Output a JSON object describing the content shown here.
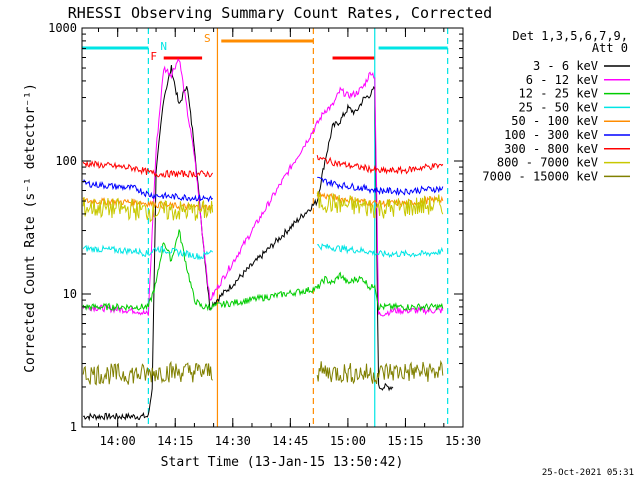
{
  "chart_data": {
    "type": "line",
    "title": "RHESSI Observing Summary Count Rates, Corrected",
    "xlabel": "Start Time (13-Jan-15 13:50:42)",
    "ylabel": "Corrected Count Rate (s⁻¹ detector⁻¹)",
    "xlim": [
      "13:50:42",
      "15:30:00"
    ],
    "ylim": [
      1,
      1000
    ],
    "yscale": "log",
    "x_ticks": [
      "14:00",
      "14:15",
      "14:30",
      "14:45",
      "15:00",
      "15:15",
      "15:30"
    ],
    "y_ticks": [
      "1",
      "10",
      "100",
      "1000"
    ],
    "legend_header": [
      "Det 1,3,5,6,7,9,",
      "Att 0"
    ],
    "legend_position": "right",
    "footer_date": "25-Oct-2021 05:31",
    "flags": [
      {
        "label": "N",
        "color": "#00e5e5",
        "start": "14:12",
        "end": "14:12"
      },
      {
        "label": "F",
        "color": "#ff0000",
        "start": "14:12",
        "end": "14:22"
      },
      {
        "label": "S",
        "color": "#ff8c00",
        "start": "14:27",
        "end": "14:51"
      }
    ],
    "night_bars": [
      {
        "color": "#00e5e5",
        "start": "13:50:42",
        "end": "14:08"
      },
      {
        "color": "#00e5e5",
        "start": "15:08",
        "end": "15:26"
      }
    ],
    "flare_bars": [
      {
        "color": "#ff0000",
        "start": "14:12",
        "end": "14:22"
      },
      {
        "color": "#ff0000",
        "start": "14:56",
        "end": "15:07"
      }
    ],
    "saa_bar": {
      "color": "#ff8c00",
      "start": "14:27",
      "end": "14:51"
    },
    "vlines": [
      {
        "time": "14:08",
        "color": "#00e5e5",
        "style": "dashed"
      },
      {
        "time": "14:26",
        "color": "#ff8c00",
        "style": "solid"
      },
      {
        "time": "14:51",
        "color": "#ff8c00",
        "style": "dashed"
      },
      {
        "time": "15:07",
        "color": "#00e5e5",
        "style": "solid"
      },
      {
        "time": "15:26",
        "color": "#00e5e5",
        "style": "dashed"
      }
    ],
    "series": [
      {
        "name": "3 - 6 keV",
        "color": "#000000",
        "x": [
          "13:51",
          "14:08",
          "14:09",
          "14:10",
          "14:12",
          "14:14",
          "14:16",
          "14:18",
          "14:20",
          "14:22",
          "14:24",
          "14:52",
          "14:54",
          "14:56",
          "14:58",
          "15:00",
          "15:02",
          "15:04",
          "15:06",
          "15:07",
          "15:08",
          "15:10",
          "15:12"
        ],
        "y": [
          1.2,
          1.2,
          2,
          80,
          300,
          500,
          260,
          380,
          130,
          30,
          8,
          50,
          100,
          180,
          200,
          250,
          230,
          290,
          320,
          350,
          2,
          2,
          2
        ]
      },
      {
        "name": "6 - 12 keV",
        "color": "#ff00ff",
        "x": [
          "13:51",
          "14:05",
          "14:08",
          "14:10",
          "14:12",
          "14:14",
          "14:16",
          "14:18",
          "14:20",
          "14:22",
          "14:24",
          "14:52",
          "14:54",
          "14:56",
          "14:58",
          "15:00",
          "15:02",
          "15:04",
          "15:06",
          "15:07",
          "15:08",
          "15:12",
          "15:20",
          "15:25"
        ],
        "y": [
          8,
          7.5,
          7,
          120,
          500,
          450,
          600,
          250,
          110,
          30,
          9,
          190,
          240,
          260,
          340,
          310,
          320,
          360,
          470,
          430,
          7,
          7.5,
          7.5,
          7.5
        ]
      },
      {
        "name": "12 - 25 keV",
        "color": "#00cc00",
        "x": [
          "13:51",
          "14:05",
          "14:08",
          "14:10",
          "14:12",
          "14:14",
          "14:16",
          "14:18",
          "14:20",
          "14:22",
          "14:24",
          "14:52",
          "14:54",
          "14:56",
          "14:58",
          "15:00",
          "15:02",
          "15:04",
          "15:06",
          "15:07",
          "15:08",
          "15:12",
          "15:20",
          "15:25"
        ],
        "y": [
          8,
          8,
          8,
          12,
          25,
          18,
          30,
          16,
          9,
          8,
          8,
          11,
          13,
          12,
          14,
          12,
          13,
          13,
          11,
          12,
          8,
          8,
          8,
          8
        ]
      },
      {
        "name": "25 - 50 keV",
        "color": "#00e5e5",
        "x": [
          "13:51",
          "14:05",
          "14:08",
          "14:10",
          "14:14",
          "14:18",
          "14:22",
          "14:25",
          "14:52",
          "14:58",
          "15:05",
          "15:08",
          "15:15",
          "15:20",
          "15:25"
        ],
        "y": [
          22,
          21,
          20,
          22,
          21,
          20,
          19,
          22,
          23,
          22,
          21,
          20,
          20,
          20,
          21
        ]
      },
      {
        "name": "50 - 100 keV",
        "color": "#ff8c00",
        "x": [
          "13:51",
          "14:05",
          "14:08",
          "14:10",
          "14:14",
          "14:20",
          "14:25",
          "14:52",
          "14:58",
          "15:05",
          "15:08",
          "15:15",
          "15:20",
          "15:25"
        ],
        "y": [
          50,
          49,
          48,
          47,
          46,
          45,
          45,
          56,
          52,
          49,
          48,
          48,
          50,
          52
        ]
      },
      {
        "name": "100 - 300 keV",
        "color": "#0000ff",
        "x": [
          "13:51",
          "14:05",
          "14:08",
          "14:10",
          "14:14",
          "14:20",
          "14:25",
          "14:52",
          "14:58",
          "15:05",
          "15:08",
          "15:15",
          "15:20",
          "15:25"
        ],
        "y": [
          68,
          62,
          56,
          55,
          54,
          53,
          52,
          73,
          66,
          62,
          60,
          59,
          61,
          62
        ]
      },
      {
        "name": "300 - 800 keV",
        "color": "#ff0000",
        "x": [
          "13:51",
          "14:05",
          "14:08",
          "14:10",
          "14:14",
          "14:20",
          "14:25",
          "14:52",
          "14:58",
          "15:05",
          "15:08",
          "15:15",
          "15:20",
          "15:25"
        ],
        "y": [
          96,
          88,
          82,
          80,
          80,
          80,
          80,
          105,
          95,
          88,
          84,
          85,
          90,
          93
        ]
      },
      {
        "name": "800 - 7000 keV",
        "color": "#c8c800",
        "x": [
          "13:51",
          "14:05",
          "14:08",
          "14:10",
          "14:14",
          "14:20",
          "14:25",
          "14:52",
          "14:58",
          "15:05",
          "15:08",
          "15:15",
          "15:20",
          "15:25"
        ],
        "y": [
          45,
          43,
          42,
          42,
          42,
          42,
          43,
          50,
          47,
          45,
          44,
          45,
          46,
          47
        ]
      },
      {
        "name": "7000 - 15000 keV",
        "color": "#808000",
        "x": [
          "13:51",
          "14:08",
          "14:10",
          "14:25",
          "14:52",
          "15:08",
          "15:10",
          "15:25"
        ],
        "y": [
          2.5,
          2.5,
          2.6,
          2.6,
          2.6,
          2.5,
          2.6,
          2.6
        ]
      }
    ]
  }
}
